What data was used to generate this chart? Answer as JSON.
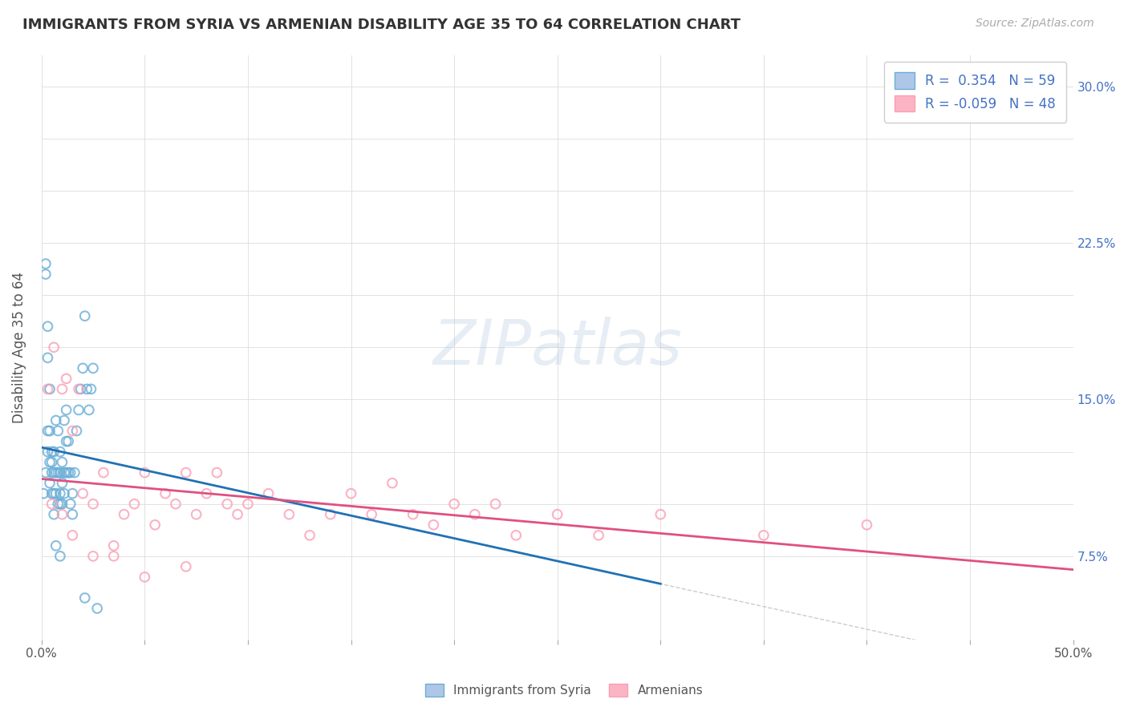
{
  "title": "IMMIGRANTS FROM SYRIA VS ARMENIAN DISABILITY AGE 35 TO 64 CORRELATION CHART",
  "source": "Source: ZipAtlas.com",
  "ylabel": "Disability Age 35 to 64",
  "xlim": [
    0.0,
    0.5
  ],
  "ylim": [
    0.035,
    0.315
  ],
  "syria_R": 0.354,
  "syria_N": 59,
  "armenian_R": -0.059,
  "armenian_N": 48,
  "syria_color": "#6baed6",
  "armenian_color": "#fa9fb5",
  "syria_line_color": "#2171b5",
  "armenian_line_color": "#e05080",
  "ytick_positions": [
    0.075,
    0.1,
    0.125,
    0.15,
    0.175,
    0.2,
    0.225,
    0.25,
    0.275,
    0.3
  ],
  "ytick_labels": [
    "7.5%",
    "",
    "",
    "15.0%",
    "",
    "",
    "22.5%",
    "",
    "",
    "30.0%"
  ],
  "xtick_positions": [
    0.0,
    0.05,
    0.1,
    0.15,
    0.2,
    0.25,
    0.3,
    0.35,
    0.4,
    0.45,
    0.5
  ],
  "xtick_labels": [
    "0.0%",
    "",
    "",
    "",
    "",
    "",
    "",
    "",
    "",
    "",
    "50.0%"
  ],
  "syria_scatter_x": [
    0.001,
    0.002,
    0.002,
    0.003,
    0.003,
    0.003,
    0.004,
    0.004,
    0.004,
    0.005,
    0.005,
    0.005,
    0.006,
    0.006,
    0.006,
    0.007,
    0.007,
    0.007,
    0.008,
    0.008,
    0.008,
    0.009,
    0.009,
    0.009,
    0.009,
    0.01,
    0.01,
    0.01,
    0.011,
    0.011,
    0.011,
    0.012,
    0.012,
    0.012,
    0.013,
    0.013,
    0.014,
    0.014,
    0.015,
    0.015,
    0.016,
    0.017,
    0.018,
    0.019,
    0.02,
    0.021,
    0.022,
    0.023,
    0.024,
    0.025,
    0.002,
    0.003,
    0.004,
    0.005,
    0.006,
    0.007,
    0.009,
    0.021,
    0.027
  ],
  "syria_scatter_y": [
    0.105,
    0.115,
    0.21,
    0.125,
    0.135,
    0.185,
    0.11,
    0.12,
    0.155,
    0.105,
    0.115,
    0.125,
    0.105,
    0.115,
    0.125,
    0.105,
    0.115,
    0.14,
    0.1,
    0.115,
    0.135,
    0.1,
    0.105,
    0.115,
    0.125,
    0.1,
    0.11,
    0.12,
    0.105,
    0.115,
    0.14,
    0.115,
    0.13,
    0.145,
    0.115,
    0.13,
    0.1,
    0.115,
    0.095,
    0.105,
    0.115,
    0.135,
    0.145,
    0.155,
    0.165,
    0.19,
    0.155,
    0.145,
    0.155,
    0.165,
    0.215,
    0.17,
    0.135,
    0.12,
    0.095,
    0.08,
    0.075,
    0.055,
    0.05
  ],
  "armenian_scatter_x": [
    0.003,
    0.006,
    0.01,
    0.012,
    0.015,
    0.018,
    0.02,
    0.025,
    0.03,
    0.035,
    0.04,
    0.045,
    0.05,
    0.055,
    0.06,
    0.065,
    0.07,
    0.075,
    0.08,
    0.085,
    0.09,
    0.095,
    0.1,
    0.11,
    0.12,
    0.13,
    0.14,
    0.15,
    0.16,
    0.17,
    0.18,
    0.19,
    0.2,
    0.21,
    0.22,
    0.23,
    0.25,
    0.27,
    0.3,
    0.35,
    0.4,
    0.005,
    0.01,
    0.015,
    0.025,
    0.035,
    0.05,
    0.07
  ],
  "armenian_scatter_y": [
    0.155,
    0.175,
    0.155,
    0.16,
    0.135,
    0.155,
    0.105,
    0.1,
    0.115,
    0.08,
    0.095,
    0.1,
    0.115,
    0.09,
    0.105,
    0.1,
    0.115,
    0.095,
    0.105,
    0.115,
    0.1,
    0.095,
    0.1,
    0.105,
    0.095,
    0.085,
    0.095,
    0.105,
    0.095,
    0.11,
    0.095,
    0.09,
    0.1,
    0.095,
    0.1,
    0.085,
    0.095,
    0.085,
    0.095,
    0.085,
    0.09,
    0.1,
    0.095,
    0.085,
    0.075,
    0.075,
    0.065,
    0.07
  ]
}
